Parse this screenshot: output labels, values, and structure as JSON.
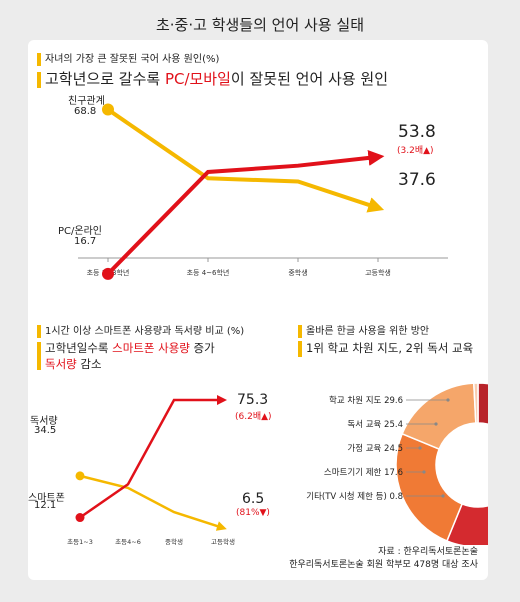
{
  "page_title": "초·중·고 학생들의 언어 사용 실태",
  "chart_data": [
    {
      "type": "line",
      "subtitle": "자녀의 가장 큰 잘못된 국어 사용 원인(%)",
      "headline_pre": "고학년으로 갈수록 ",
      "headline_highlight": "PC/모바일",
      "headline_post": "이 잘못된 언어 사용 원인",
      "categories": [
        "초등 1~3학년",
        "초등 4~6학년",
        "중학생",
        "고등학생"
      ],
      "series": [
        {
          "name": "친구관계",
          "values": [
            68.8,
            47.0,
            46.0,
            37.6
          ],
          "color": "#f5b800",
          "start_label": "68.8",
          "end_label": "37.6"
        },
        {
          "name": "PC/온라인",
          "values": [
            16.7,
            49.0,
            51.0,
            53.8
          ],
          "color": "#e1111a",
          "start_label": "16.7",
          "end_label": "53.8",
          "end_note": "(3.2배▲)"
        }
      ],
      "ylim": [
        10,
        75
      ]
    },
    {
      "type": "line",
      "subtitle": "1시간 이상 스마트폰 사용량과 독서량 비교 (%)",
      "headline_pre": "고학년일수록 ",
      "headline_highlight": "스마트폰 사용량",
      "headline_mid": " 증가",
      "headline_highlight2": "독서량",
      "headline_post": " 감소",
      "categories": [
        "초등1~3",
        "초등4~6",
        "중학생",
        "고등학생"
      ],
      "series": [
        {
          "name": "독서량",
          "values": [
            34.5,
            28.0,
            15.0,
            6.5
          ],
          "color": "#f5b800",
          "start_label": "34.5",
          "end_label": "6.5",
          "end_note": "(81%▼)"
        },
        {
          "name": "스마트폰",
          "values": [
            12.1,
            30.0,
            75.3,
            75.3
          ],
          "color": "#e1111a",
          "start_label": "12.1",
          "end_label": "75.3",
          "end_note": "(6.2배▲)"
        }
      ],
      "ylim": [
        0,
        85
      ]
    },
    {
      "type": "pie",
      "subtitle": "올바른 한글 사용을 위한 방안",
      "headline": "1위 학교 차원 지도, 2위 독서 교육",
      "labels": [
        "학교 차원 지도",
        "독서 교육",
        "가정 교육",
        "스마트기기 제한",
        "기타(TV 시청 제한 등)"
      ],
      "values": [
        29.6,
        25.4,
        24.5,
        17.6,
        0.8
      ],
      "display": [
        "학교 차원 지도 29.6",
        "독서 교육 25.4",
        "가정 교육 24.5",
        "스마트기기 제한 17.6",
        "기타(TV 시청 제한 등) 0.8"
      ],
      "colors": [
        "#b8232a",
        "#d42a2f",
        "#f07a35",
        "#f5a66a",
        "#f8cdb0"
      ]
    }
  ],
  "footer": {
    "source": "자료 : 한우리독서토론논술",
    "note": "한우리독서토론논술 회원 학부모 478명 대상 조사"
  }
}
